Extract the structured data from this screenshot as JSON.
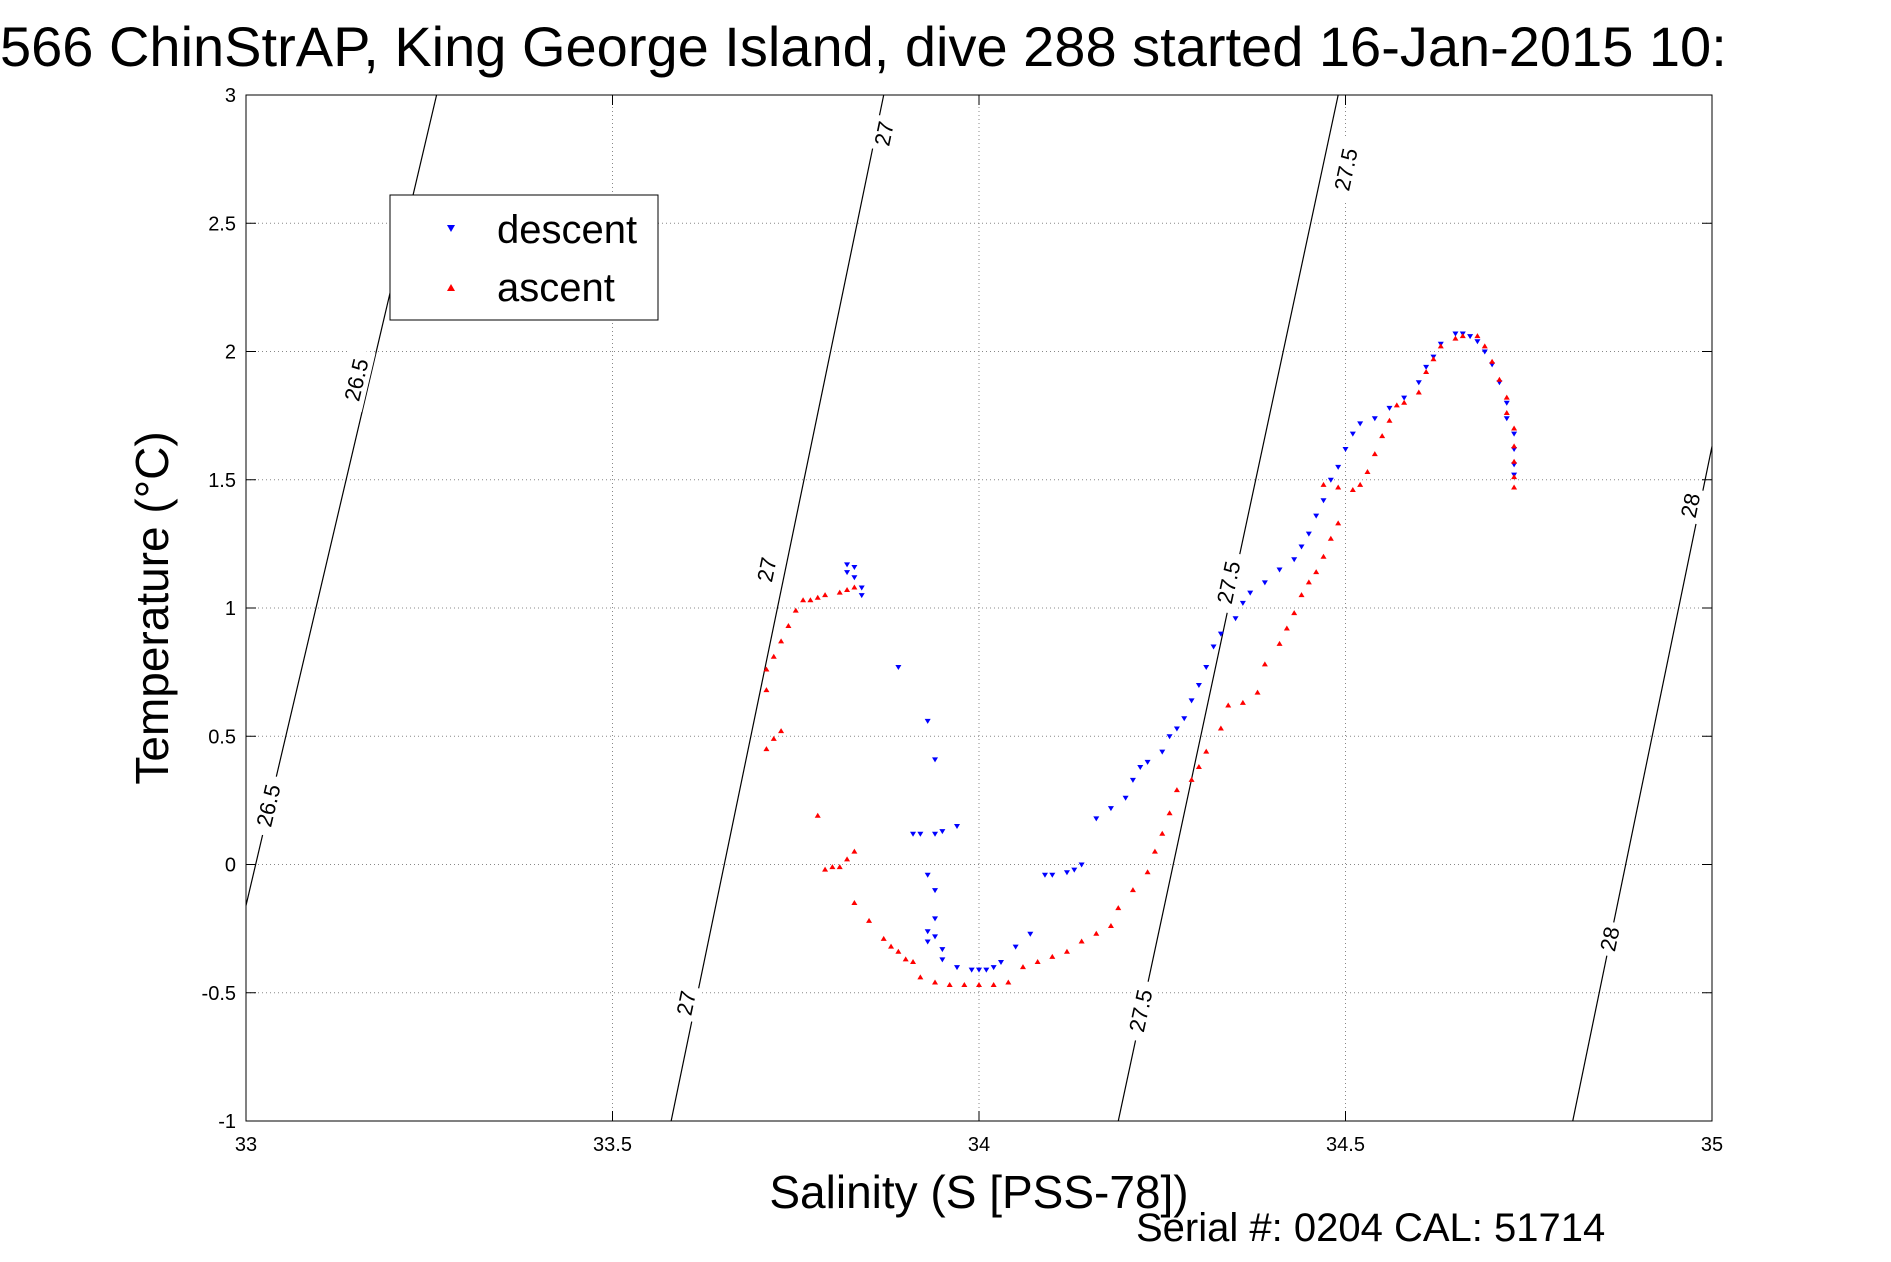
{
  "chart_data": {
    "type": "scatter",
    "title": "566 ChinStrAP, King George Island, dive 288 started 16-Jan-2015 10:",
    "xlabel": "Salinity (S [PSS-78])",
    "ylabel": "Temperature (°C)",
    "xlim": [
      33,
      35
    ],
    "ylim": [
      -1,
      3
    ],
    "x_ticks": [
      33,
      33.5,
      34,
      34.5,
      35
    ],
    "x_tick_labels": [
      "33",
      "33.5",
      "34",
      "34.5",
      "35"
    ],
    "y_ticks": [
      -1,
      -0.5,
      0,
      0.5,
      1,
      1.5,
      2,
      2.5,
      3
    ],
    "y_tick_labels": [
      "-1",
      "-0.5",
      "0",
      "0.5",
      "1",
      "1.5",
      "2",
      "2.5",
      "3"
    ],
    "grid": true,
    "legend_position": "top-left",
    "series": [
      {
        "name": "descent",
        "color": "#0000ff",
        "marker": "triangle-down",
        "points": [
          [
            33.82,
            1.17
          ],
          [
            33.83,
            1.16
          ],
          [
            33.82,
            1.14
          ],
          [
            33.83,
            1.12
          ],
          [
            33.84,
            1.08
          ],
          [
            33.84,
            1.05
          ],
          [
            33.89,
            0.77
          ],
          [
            33.93,
            0.56
          ],
          [
            33.94,
            0.41
          ],
          [
            33.91,
            0.12
          ],
          [
            33.92,
            0.12
          ],
          [
            33.94,
            0.12
          ],
          [
            33.95,
            0.13
          ],
          [
            33.97,
            0.15
          ],
          [
            33.93,
            -0.04
          ],
          [
            33.94,
            -0.1
          ],
          [
            33.94,
            -0.21
          ],
          [
            33.93,
            -0.26
          ],
          [
            33.94,
            -0.28
          ],
          [
            33.93,
            -0.3
          ],
          [
            33.95,
            -0.33
          ],
          [
            33.95,
            -0.37
          ],
          [
            33.97,
            -0.4
          ],
          [
            33.99,
            -0.41
          ],
          [
            34.0,
            -0.41
          ],
          [
            34.01,
            -0.41
          ],
          [
            34.02,
            -0.4
          ],
          [
            34.03,
            -0.38
          ],
          [
            34.05,
            -0.32
          ],
          [
            34.07,
            -0.27
          ],
          [
            34.09,
            -0.04
          ],
          [
            34.1,
            -0.04
          ],
          [
            34.12,
            -0.03
          ],
          [
            34.13,
            -0.02
          ],
          [
            34.14,
            0.0
          ],
          [
            34.16,
            0.18
          ],
          [
            34.18,
            0.22
          ],
          [
            34.2,
            0.26
          ],
          [
            34.21,
            0.33
          ],
          [
            34.22,
            0.38
          ],
          [
            34.23,
            0.4
          ],
          [
            34.25,
            0.44
          ],
          [
            34.26,
            0.5
          ],
          [
            34.27,
            0.53
          ],
          [
            34.28,
            0.57
          ],
          [
            34.29,
            0.64
          ],
          [
            34.3,
            0.7
          ],
          [
            34.31,
            0.77
          ],
          [
            34.32,
            0.85
          ],
          [
            34.33,
            0.9
          ],
          [
            34.35,
            0.96
          ],
          [
            34.36,
            1.02
          ],
          [
            34.37,
            1.06
          ],
          [
            34.39,
            1.1
          ],
          [
            34.41,
            1.15
          ],
          [
            34.43,
            1.19
          ],
          [
            34.44,
            1.24
          ],
          [
            34.45,
            1.29
          ],
          [
            34.46,
            1.36
          ],
          [
            34.47,
            1.42
          ],
          [
            34.48,
            1.5
          ],
          [
            34.49,
            1.55
          ],
          [
            34.5,
            1.62
          ],
          [
            34.51,
            1.68
          ],
          [
            34.52,
            1.72
          ],
          [
            34.54,
            1.74
          ],
          [
            34.56,
            1.78
          ],
          [
            34.58,
            1.82
          ],
          [
            34.6,
            1.88
          ],
          [
            34.61,
            1.94
          ],
          [
            34.62,
            1.98
          ],
          [
            34.63,
            2.03
          ],
          [
            34.65,
            2.07
          ],
          [
            34.66,
            2.07
          ],
          [
            34.67,
            2.06
          ],
          [
            34.68,
            2.04
          ],
          [
            34.69,
            2.0
          ],
          [
            34.7,
            1.95
          ],
          [
            34.71,
            1.88
          ],
          [
            34.72,
            1.8
          ],
          [
            34.72,
            1.74
          ],
          [
            34.73,
            1.68
          ],
          [
            34.73,
            1.62
          ],
          [
            34.73,
            1.56
          ],
          [
            34.73,
            1.52
          ]
        ]
      },
      {
        "name": "ascent",
        "color": "#ff0000",
        "marker": "triangle-up",
        "points": [
          [
            33.83,
            1.08
          ],
          [
            33.82,
            1.07
          ],
          [
            33.81,
            1.06
          ],
          [
            33.79,
            1.05
          ],
          [
            33.78,
            1.04
          ],
          [
            33.77,
            1.03
          ],
          [
            33.76,
            1.03
          ],
          [
            33.75,
            0.99
          ],
          [
            33.74,
            0.93
          ],
          [
            33.73,
            0.87
          ],
          [
            33.72,
            0.81
          ],
          [
            33.71,
            0.76
          ],
          [
            33.71,
            0.68
          ],
          [
            33.73,
            0.52
          ],
          [
            33.72,
            0.49
          ],
          [
            33.71,
            0.45
          ],
          [
            33.78,
            0.19
          ],
          [
            33.79,
            -0.02
          ],
          [
            33.8,
            -0.01
          ],
          [
            33.81,
            -0.01
          ],
          [
            33.82,
            0.02
          ],
          [
            33.83,
            0.05
          ],
          [
            33.83,
            -0.15
          ],
          [
            33.85,
            -0.22
          ],
          [
            33.87,
            -0.29
          ],
          [
            33.88,
            -0.32
          ],
          [
            33.89,
            -0.34
          ],
          [
            33.9,
            -0.37
          ],
          [
            33.91,
            -0.38
          ],
          [
            33.92,
            -0.44
          ],
          [
            33.94,
            -0.46
          ],
          [
            33.96,
            -0.47
          ],
          [
            33.98,
            -0.47
          ],
          [
            34.0,
            -0.47
          ],
          [
            34.02,
            -0.47
          ],
          [
            34.04,
            -0.46
          ],
          [
            34.06,
            -0.4
          ],
          [
            34.08,
            -0.38
          ],
          [
            34.1,
            -0.36
          ],
          [
            34.12,
            -0.34
          ],
          [
            34.14,
            -0.3
          ],
          [
            34.16,
            -0.27
          ],
          [
            34.18,
            -0.24
          ],
          [
            34.19,
            -0.17
          ],
          [
            34.21,
            -0.1
          ],
          [
            34.23,
            -0.03
          ],
          [
            34.24,
            0.05
          ],
          [
            34.25,
            0.12
          ],
          [
            34.26,
            0.2
          ],
          [
            34.27,
            0.29
          ],
          [
            34.29,
            0.33
          ],
          [
            34.3,
            0.38
          ],
          [
            34.31,
            0.44
          ],
          [
            34.33,
            0.53
          ],
          [
            34.34,
            0.62
          ],
          [
            34.36,
            0.63
          ],
          [
            34.38,
            0.67
          ],
          [
            34.39,
            0.78
          ],
          [
            34.41,
            0.86
          ],
          [
            34.42,
            0.92
          ],
          [
            34.43,
            0.98
          ],
          [
            34.44,
            1.05
          ],
          [
            34.45,
            1.1
          ],
          [
            34.46,
            1.14
          ],
          [
            34.47,
            1.2
          ],
          [
            34.48,
            1.27
          ],
          [
            34.49,
            1.33
          ],
          [
            34.47,
            1.48
          ],
          [
            34.49,
            1.47
          ],
          [
            34.51,
            1.46
          ],
          [
            34.52,
            1.48
          ],
          [
            34.53,
            1.53
          ],
          [
            34.54,
            1.6
          ],
          [
            34.55,
            1.67
          ],
          [
            34.56,
            1.73
          ],
          [
            34.57,
            1.79
          ],
          [
            34.58,
            1.8
          ],
          [
            34.6,
            1.84
          ],
          [
            34.61,
            1.92
          ],
          [
            34.62,
            1.97
          ],
          [
            34.63,
            2.02
          ],
          [
            34.65,
            2.05
          ],
          [
            34.66,
            2.06
          ],
          [
            34.68,
            2.06
          ],
          [
            34.69,
            2.02
          ],
          [
            34.7,
            1.96
          ],
          [
            34.71,
            1.89
          ],
          [
            34.72,
            1.82
          ],
          [
            34.72,
            1.76
          ],
          [
            34.73,
            1.7
          ],
          [
            34.73,
            1.63
          ],
          [
            34.73,
            1.57
          ],
          [
            34.73,
            1.51
          ],
          [
            34.73,
            1.47
          ]
        ]
      }
    ],
    "isopycnals": [
      {
        "label": "26.5",
        "from": [
          33.0,
          -0.16
        ],
        "to": [
          33.26,
          3.0
        ]
      },
      {
        "label": "27",
        "from": [
          33.58,
          -1.0
        ],
        "to": [
          33.87,
          3.0
        ]
      },
      {
        "label": "27.5",
        "from": [
          34.19,
          -1.0
        ],
        "to": [
          34.49,
          3.0
        ]
      },
      {
        "label": "28",
        "from": [
          34.81,
          -1.0
        ],
        "to": [
          35.0,
          1.63
        ]
      }
    ],
    "isopycnal_labels": [
      {
        "text": "26.5",
        "at": [
          33.15,
          1.89
        ]
      },
      {
        "text": "26.5",
        "at": [
          33.03,
          0.23
        ]
      },
      {
        "text": "27",
        "at": [
          33.87,
          2.85
        ]
      },
      {
        "text": "27",
        "at": [
          33.71,
          1.15
        ]
      },
      {
        "text": "27",
        "at": [
          33.6,
          -0.54
        ]
      },
      {
        "text": "27.5",
        "at": [
          34.5,
          2.71
        ]
      },
      {
        "text": "27.5",
        "at": [
          34.34,
          1.1
        ]
      },
      {
        "text": "27.5",
        "at": [
          34.22,
          -0.57
        ]
      },
      {
        "text": "28",
        "at": [
          34.97,
          1.4
        ]
      },
      {
        "text": "28",
        "at": [
          34.86,
          -0.29
        ]
      }
    ],
    "footer": "Serial #: 0204  CAL: 51714"
  }
}
